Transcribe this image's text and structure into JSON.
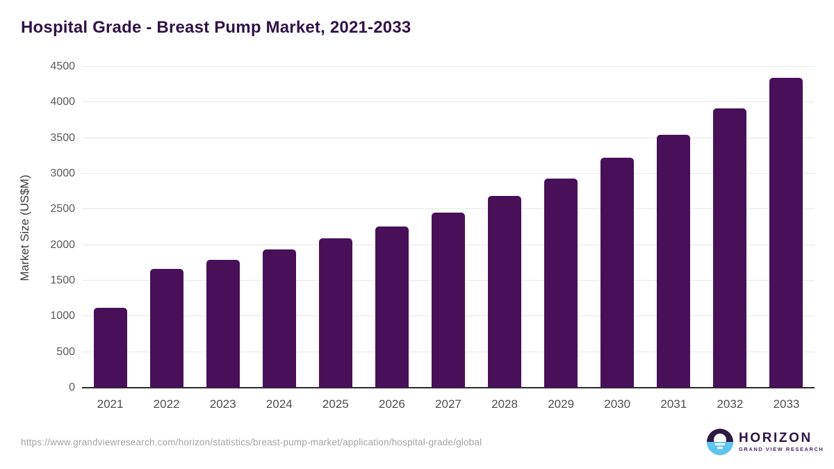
{
  "title": "Hospital Grade - Breast Pump Market, 2021-2033",
  "chart_data": {
    "type": "bar",
    "title": "Hospital Grade - Breast Pump Market, 2021-2033",
    "categories": [
      "2021",
      "2022",
      "2023",
      "2024",
      "2025",
      "2026",
      "2027",
      "2028",
      "2029",
      "2030",
      "2031",
      "2032",
      "2033"
    ],
    "values": [
      1125,
      1665,
      1795,
      1935,
      2090,
      2260,
      2455,
      2690,
      2930,
      3225,
      3550,
      3920,
      4345
    ],
    "xlabel": "",
    "ylabel": "Market Size (US$M)",
    "ylim": [
      0,
      4500
    ],
    "ytick_step": 500,
    "grid": true,
    "legend": "none",
    "bar_color": "#481058"
  },
  "footer": {
    "source_url": "https://www.grandviewresearch.com/horizon/statistics/breast-pump-market/application/hospital-grade/global",
    "logo": {
      "name": "HORIZON",
      "subtitle": "GRAND VIEW RESEARCH"
    }
  },
  "colors": {
    "title": "#2f1347",
    "bar": "#481058",
    "grid": "#e7e7e7",
    "axis": "#2b2b2b",
    "tick_label": "#5a5a5a",
    "x_label": "#4d4d4d",
    "url": "#a3a3a3",
    "logo_purple": "#2c1a45",
    "logo_blue": "#5fc6f2"
  }
}
